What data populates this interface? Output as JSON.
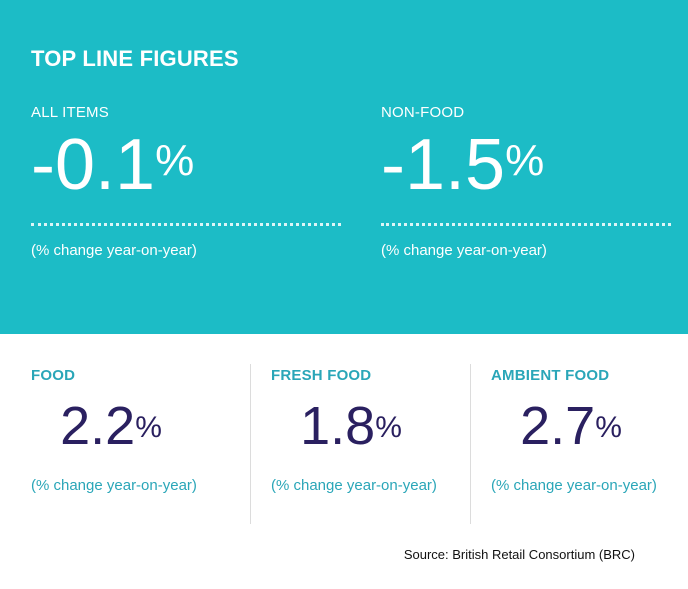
{
  "header": {
    "title": "TOP LINE FIGURES"
  },
  "top_figures": [
    {
      "label": "ALL ITEMS",
      "value": "-0.1",
      "unit": "%",
      "caption": "(% change year-on-year)"
    },
    {
      "label": "NON-FOOD",
      "value": "-1.5",
      "unit": "%",
      "caption": "(% change year-on-year)"
    }
  ],
  "bottom_figures": [
    {
      "label": "FOOD",
      "value": "2.2",
      "unit": "%",
      "caption": "(% change year-on-year)"
    },
    {
      "label": "FRESH FOOD",
      "value": "1.8",
      "unit": "%",
      "caption": "(% change year-on-year)"
    },
    {
      "label": "AMBIENT FOOD",
      "value": "2.7",
      "unit": "%",
      "caption": "(% change year-on-year)"
    }
  ],
  "footer": {
    "source": "Source: British Retail Consortium (BRC)"
  },
  "colors": {
    "teal_background": "#1cbcc6",
    "label_teal": "#2aa6b8",
    "value_navy": "#2a2060"
  }
}
